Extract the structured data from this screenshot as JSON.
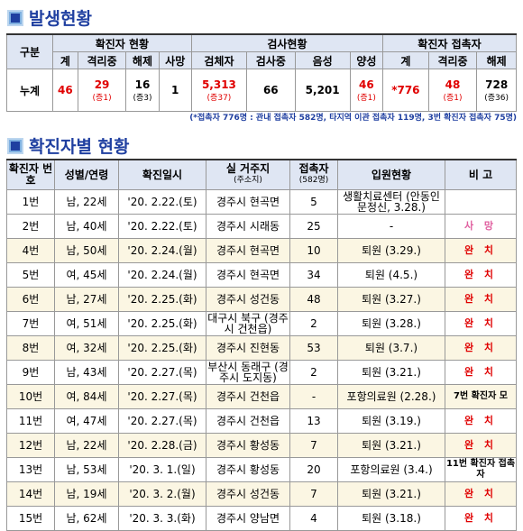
{
  "section1_title": "발생현황",
  "section2_title": "확진자별 현황",
  "summary": {
    "groups": {
      "category": "구분",
      "confirmed": "확진자 현황",
      "tests": "검사현황",
      "contacts": "확진자 접촉자"
    },
    "headers": [
      "계",
      "격리중",
      "해제",
      "사망",
      "검체자",
      "검사중",
      "음성",
      "양성",
      "계",
      "격리중",
      "해제"
    ],
    "row_label": "누계",
    "values": [
      {
        "v": "46",
        "s": ""
      },
      {
        "v": "29",
        "s": "(증1)"
      },
      {
        "v": "16",
        "s": "(증3)"
      },
      {
        "v": "1",
        "s": ""
      },
      {
        "v": "5,313",
        "s": "(증37)"
      },
      {
        "v": "66",
        "s": ""
      },
      {
        "v": "5,201",
        "s": ""
      },
      {
        "v": "46",
        "s": "(증1)"
      },
      {
        "v": "*776",
        "s": ""
      },
      {
        "v": "48",
        "s": "(증1)"
      },
      {
        "v": "728",
        "s": "(증36)"
      }
    ]
  },
  "note": "(*접촉자 776명 : 관내 접촉자 582명, 타지역 이관 접촉자 119명, 3번 확진자 접촉자 75명)",
  "cases": {
    "headers": {
      "no": "확진자 번호",
      "sex_age": "성별/연령",
      "date": "확진일시",
      "residence": "실 거주지",
      "residence_sub": "(주소지)",
      "contacts": "접촉자",
      "contacts_sub": "(582명)",
      "status": "입원현황",
      "remark": "비 고"
    },
    "rows": [
      {
        "no": "1번",
        "sex_age": "남, 22세",
        "date": "'20. 2.22.(토)",
        "residence": "경주시 현곡면",
        "contacts": "5",
        "status": "생활치료센터 (안동인문정신, 3.28.)",
        "remark": ""
      },
      {
        "no": "2번",
        "sex_age": "남, 40세",
        "date": "'20. 2.22.(토)",
        "residence": "경주시 시래동",
        "contacts": "25",
        "status": "-",
        "remark": "사 망"
      },
      {
        "no": "4번",
        "sex_age": "남, 50세",
        "date": "'20. 2.24.(월)",
        "residence": "경주시 현곡면",
        "contacts": "10",
        "status": "퇴원 (3.29.)",
        "remark": "완 치"
      },
      {
        "no": "5번",
        "sex_age": "여, 45세",
        "date": "'20. 2.24.(월)",
        "residence": "경주시 현곡면",
        "contacts": "34",
        "status": "퇴원 (4.5.)",
        "remark": "완 치"
      },
      {
        "no": "6번",
        "sex_age": "남, 27세",
        "date": "'20. 2.25.(화)",
        "residence": "경주시 성건동",
        "contacts": "48",
        "status": "퇴원 (3.27.)",
        "remark": "완 치"
      },
      {
        "no": "7번",
        "sex_age": "여, 51세",
        "date": "'20. 2.25.(화)",
        "residence": "대구시 북구 (경주시 건천읍)",
        "contacts": "2",
        "status": "퇴원 (3.28.)",
        "remark": "완 치"
      },
      {
        "no": "8번",
        "sex_age": "여, 32세",
        "date": "'20. 2.25.(화)",
        "residence": "경주시 진현동",
        "contacts": "53",
        "status": "퇴원 (3.7.)",
        "remark": "완 치"
      },
      {
        "no": "9번",
        "sex_age": "남, 43세",
        "date": "'20. 2.27.(목)",
        "residence": "부산시 동래구 (경주시 도지동)",
        "contacts": "2",
        "status": "퇴원 (3.21.)",
        "remark": "완 치"
      },
      {
        "no": "10번",
        "sex_age": "여, 84세",
        "date": "'20. 2.27.(목)",
        "residence": "경주시 건천읍",
        "contacts": "-",
        "status": "포항의료원 (2.28.)",
        "remark": "7번 확진자 모"
      },
      {
        "no": "11번",
        "sex_age": "여, 47세",
        "date": "'20. 2.27.(목)",
        "residence": "경주시 건천읍",
        "contacts": "13",
        "status": "퇴원 (3.19.)",
        "remark": "완 치"
      },
      {
        "no": "12번",
        "sex_age": "남, 22세",
        "date": "'20. 2.28.(금)",
        "residence": "경주시 황성동",
        "contacts": "7",
        "status": "퇴원 (3.21.)",
        "remark": "완 치"
      },
      {
        "no": "13번",
        "sex_age": "남, 53세",
        "date": "'20. 3. 1.(일)",
        "residence": "경주시 황성동",
        "contacts": "20",
        "status": "포항의료원 (3.4.)",
        "remark": "11번 확진자 접촉자"
      },
      {
        "no": "14번",
        "sex_age": "남, 19세",
        "date": "'20. 3. 2.(월)",
        "residence": "경주시 성건동",
        "contacts": "7",
        "status": "퇴원 (3.21.)",
        "remark": "완 치"
      },
      {
        "no": "15번",
        "sex_age": "남, 62세",
        "date": "'20. 3. 3.(화)",
        "residence": "경주시 양남면",
        "contacts": "4",
        "status": "퇴원 (3.18.)",
        "remark": "완 치"
      }
    ]
  },
  "colors": {
    "title": "#1f3fa0",
    "header_bg": "#dfe6f3",
    "red": "#e00000",
    "alt_row": "#fbf6e3"
  }
}
